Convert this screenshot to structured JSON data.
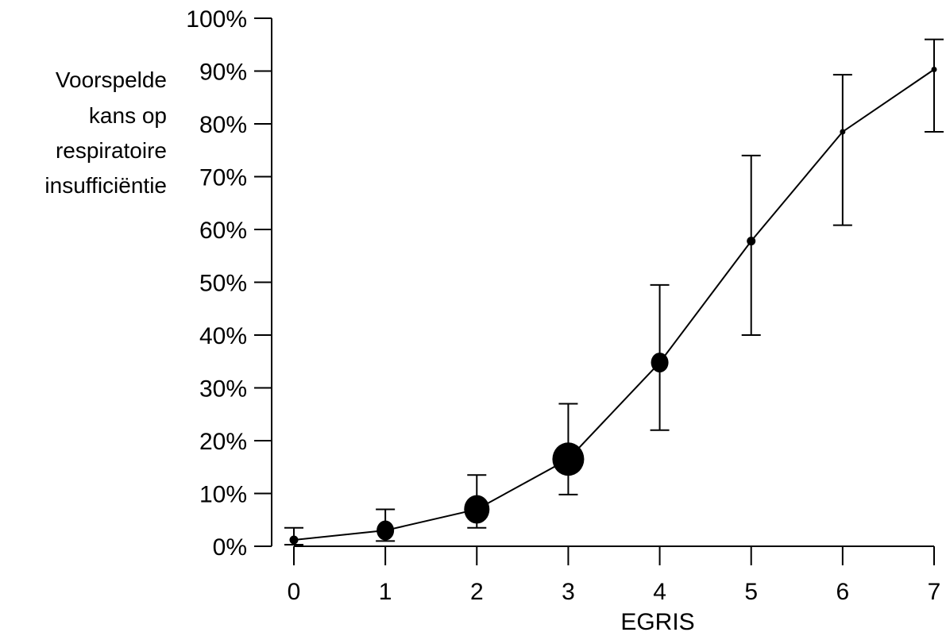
{
  "chart_data": {
    "type": "line",
    "xlabel": "EGRIS",
    "ylabel_lines": [
      "Voorspelde",
      "kans op",
      "respiratoire",
      "insufficiëntie"
    ],
    "x_ticks": [
      "0",
      "1",
      "2",
      "3",
      "4",
      "5",
      "6",
      "7"
    ],
    "y_ticks": [
      "0%",
      "10%",
      "20%",
      "30%",
      "40%",
      "50%",
      "60%",
      "70%",
      "80%",
      "90%",
      "100%"
    ],
    "xlim": [
      0,
      7
    ],
    "ylim": [
      0,
      100
    ],
    "grid": false,
    "legend": "none",
    "points": [
      {
        "x": 0,
        "y": 1.2,
        "lower": 0.3,
        "upper": 3.5,
        "size": "small"
      },
      {
        "x": 1,
        "y": 3.0,
        "lower": 1.0,
        "upper": 7.0,
        "size": "medium"
      },
      {
        "x": 2,
        "y": 7.0,
        "lower": 3.5,
        "upper": 13.5,
        "size": "large"
      },
      {
        "x": 3,
        "y": 16.5,
        "lower": 9.8,
        "upper": 27.0,
        "size": "xlarge"
      },
      {
        "x": 4,
        "y": 34.8,
        "lower": 22.0,
        "upper": 49.5,
        "size": "medium"
      },
      {
        "x": 5,
        "y": 57.8,
        "lower": 40.0,
        "upper": 74.0,
        "size": "small"
      },
      {
        "x": 6,
        "y": 78.5,
        "lower": 60.8,
        "upper": 89.3,
        "size": "tiny"
      },
      {
        "x": 7,
        "y": 90.3,
        "lower": 78.5,
        "upper": 96.0,
        "size": "tiny"
      }
    ],
    "color": "#000000"
  }
}
